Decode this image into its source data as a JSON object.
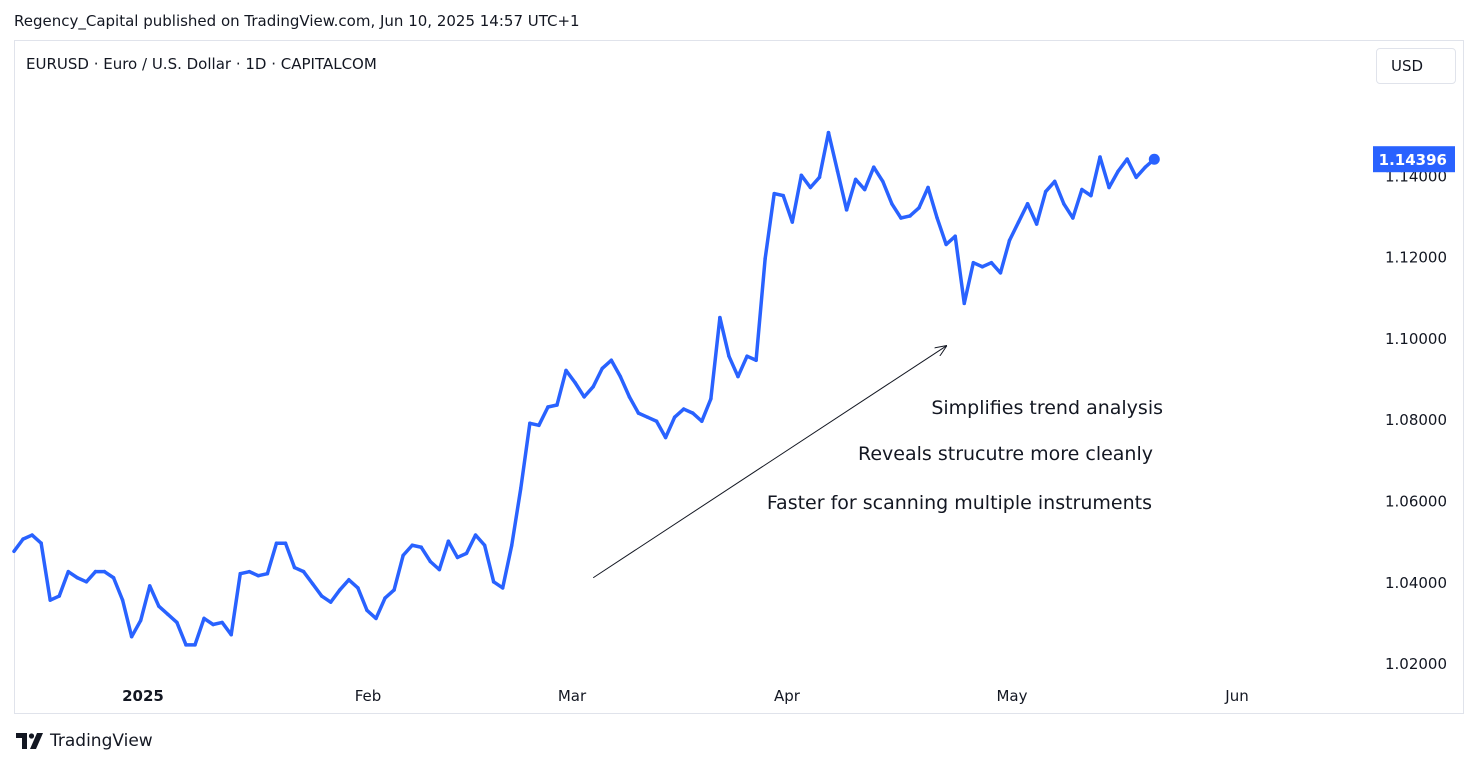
{
  "header": {
    "published_line": "Regency_Capital published on TradingView.com, Jun 10, 2025 14:57 UTC+1"
  },
  "symbol": {
    "title": "EURUSD · Euro / U.S. Dollar · 1D · CAPITALCOM",
    "currency_button": "USD"
  },
  "footer": {
    "brand": "TradingView",
    "logo_icon": "tradingview-logo-icon"
  },
  "colors": {
    "line": "#2962ff",
    "price_label_bg": "#2962ff",
    "text": "#131722",
    "border": "#e0e3eb"
  },
  "chart_data": {
    "type": "line",
    "series": [
      {
        "values": [
          1.0475,
          1.0505,
          1.0515,
          1.0495,
          1.0355,
          1.0365,
          1.0425,
          1.041,
          1.04,
          1.0425,
          1.0425,
          1.041,
          1.0355,
          1.0265,
          1.0305,
          1.039,
          1.034,
          1.032,
          1.03,
          1.0245,
          1.0245,
          1.031,
          1.0295,
          1.03,
          1.027,
          1.042,
          1.0425,
          1.0415,
          1.042,
          1.0495,
          1.0495,
          1.0435,
          1.0425,
          1.0395,
          1.0365,
          1.035,
          1.038,
          1.0405,
          1.0385,
          1.033,
          1.031,
          1.036,
          1.038,
          1.0465,
          1.049,
          1.0485,
          1.045,
          1.043,
          1.05,
          1.046,
          1.047,
          1.0515,
          1.049,
          1.04,
          1.0385,
          1.049,
          1.063,
          1.079,
          1.0785,
          1.083,
          1.0835,
          1.092,
          1.089,
          1.0855,
          1.088,
          1.0925,
          1.0945,
          1.0905,
          1.0855,
          1.0815,
          1.0805,
          1.0795,
          1.0755,
          1.0805,
          1.0825,
          1.0815,
          1.0795,
          1.085,
          1.105,
          1.0955,
          1.0905,
          1.0955,
          1.0945,
          1.1195,
          1.1355,
          1.135,
          1.1285,
          1.14,
          1.137,
          1.1395,
          1.1505,
          1.141,
          1.1315,
          1.139,
          1.1365,
          1.142,
          1.1385,
          1.133,
          1.1295,
          1.13,
          1.132,
          1.137,
          1.1295,
          1.123,
          1.125,
          1.1085,
          1.1185,
          1.1175,
          1.1185,
          1.116,
          1.124,
          1.1285,
          1.133,
          1.128,
          1.136,
          1.1385,
          1.133,
          1.1295,
          1.1365,
          1.135,
          1.1445,
          1.137,
          1.141,
          1.144,
          1.1395,
          1.142,
          1.14396
        ]
      }
    ],
    "x_tick_labels": [
      "2025",
      "Feb",
      "Mar",
      "Apr",
      "May",
      "Jun"
    ],
    "y_tick_labels": [
      "1.02000",
      "1.04000",
      "1.06000",
      "1.08000",
      "1.10000",
      "1.12000",
      "1.14000"
    ],
    "y_ticks": [
      1.02,
      1.04,
      1.06,
      1.08,
      1.1,
      1.12,
      1.14
    ],
    "ylim": [
      1.0065,
      1.16
    ],
    "last_price_label": "1.14396",
    "last_price": 1.14396,
    "annotations": [
      "Simplifies trend analysis",
      "Reveals strucutre more cleanly",
      "Faster for scanning multiple instruments"
    ],
    "arrow": {
      "from": {
        "x_index": 64,
        "y": 1.041
      },
      "to": {
        "x_index": 103,
        "y": 1.098
      }
    },
    "legend": "none",
    "grid": false
  }
}
